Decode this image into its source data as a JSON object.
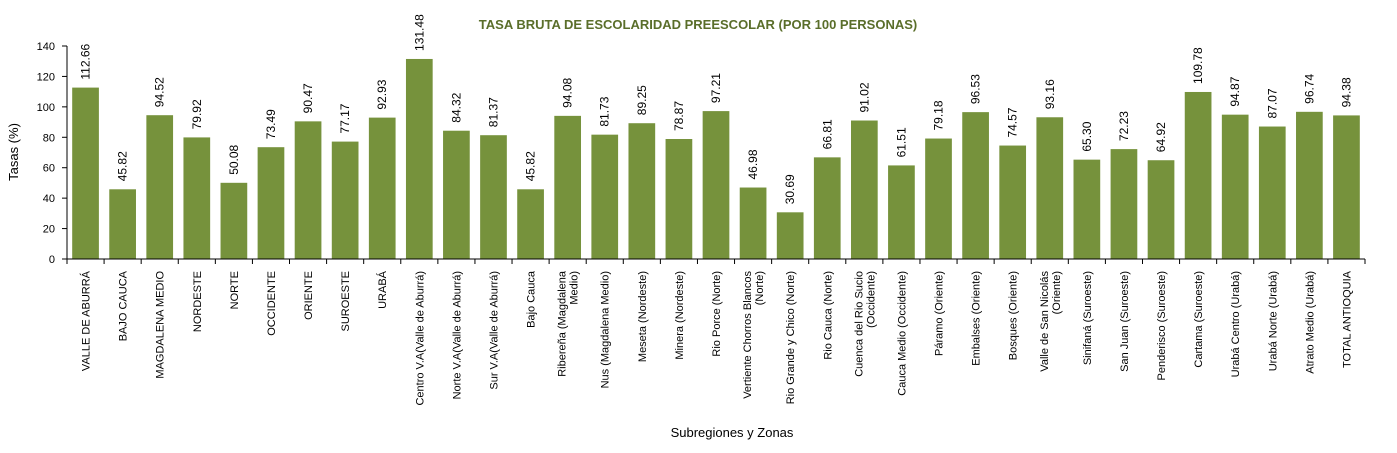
{
  "chart_data": {
    "type": "bar",
    "title": "TASA BRUTA DE ESCOLARIDAD PREESCOLAR (POR 100 PERSONAS)",
    "xlabel": "Subregiones y Zonas",
    "ylabel": "Tasas (%)",
    "ylim": [
      0,
      140
    ],
    "yticks": [
      0,
      20,
      40,
      60,
      80,
      100,
      120,
      140
    ],
    "grid": false,
    "bar_color": "#76923c",
    "categories": [
      [
        "VALLE DE ABURRÁ"
      ],
      [
        "BAJO CAUCA"
      ],
      [
        "MAGDALENA MEDIO"
      ],
      [
        "NORDESTE"
      ],
      [
        "NORTE"
      ],
      [
        "OCCIDENTE"
      ],
      [
        "ORIENTE"
      ],
      [
        "SUROESTE"
      ],
      [
        "URABÁ"
      ],
      [
        "Centro V.A(Valle de Aburrá)"
      ],
      [
        "Norte V.A(Valle de Aburrá)"
      ],
      [
        "Sur V.A(Valle de Aburrá)"
      ],
      [
        "Bajo Cauca"
      ],
      [
        "Ribereña  (Magdalena",
        "Medio)"
      ],
      [
        "Nus  (Magdalena Medio)"
      ],
      [
        "Meseta  (Nordeste)"
      ],
      [
        "Minera  (Nordeste)"
      ],
      [
        "Rio Porce   (Norte)"
      ],
      [
        "Vertiente Chorros Blancos",
        "(Norte)"
      ],
      [
        "Rio Grande y Chico  (Norte)"
      ],
      [
        "Rio Cauca  (Norte)"
      ],
      [
        "Cuenca del Rio Sucio",
        "(Occidente)"
      ],
      [
        "Cauca Medio  (Occidente)"
      ],
      [
        "Páramo  (Oriente)"
      ],
      [
        "Embalses  (Oriente)"
      ],
      [
        "Bosques  (Oriente)"
      ],
      [
        "Valle de San Nicolás",
        "(Oriente)"
      ],
      [
        "Sinifaná  (Suroeste)"
      ],
      [
        "San Juan  (Suroeste)"
      ],
      [
        "Penderisco  (Suroeste)"
      ],
      [
        "Cartama  (Suroeste)"
      ],
      [
        "Urabá Centro  (Urabá)"
      ],
      [
        "Urabá Norte  (Urabá)"
      ],
      [
        "Atrato Medio  (Urabá)"
      ],
      [
        "TOTAL ANTIOQUIA"
      ]
    ],
    "values": [
      112.66,
      45.82,
      94.52,
      79.92,
      50.08,
      73.49,
      90.47,
      77.17,
      92.93,
      131.48,
      84.32,
      81.37,
      45.82,
      94.08,
      81.73,
      89.25,
      78.87,
      97.21,
      46.98,
      30.69,
      66.81,
      91.02,
      61.51,
      79.18,
      96.53,
      74.57,
      93.16,
      65.3,
      72.23,
      64.92,
      109.78,
      94.87,
      87.07,
      96.74,
      94.38
    ],
    "labels": [
      "112.66",
      "45.82",
      "94.52",
      "79.92",
      "50.08",
      "73.49",
      "90.47",
      "77.17",
      "92.93",
      "131.48",
      "84.32",
      "81.37",
      "45.82",
      "94.08",
      "81.73",
      "89.25",
      "78.87",
      "97.21",
      "46.98",
      "30.69",
      "66.81",
      "91.02",
      "61.51",
      "79.18",
      "96.53",
      "74.57",
      "93.16",
      "65.30",
      "72.23",
      "64.92",
      "109.78",
      "94.87",
      "87.07",
      "96.74",
      "94.38"
    ]
  }
}
